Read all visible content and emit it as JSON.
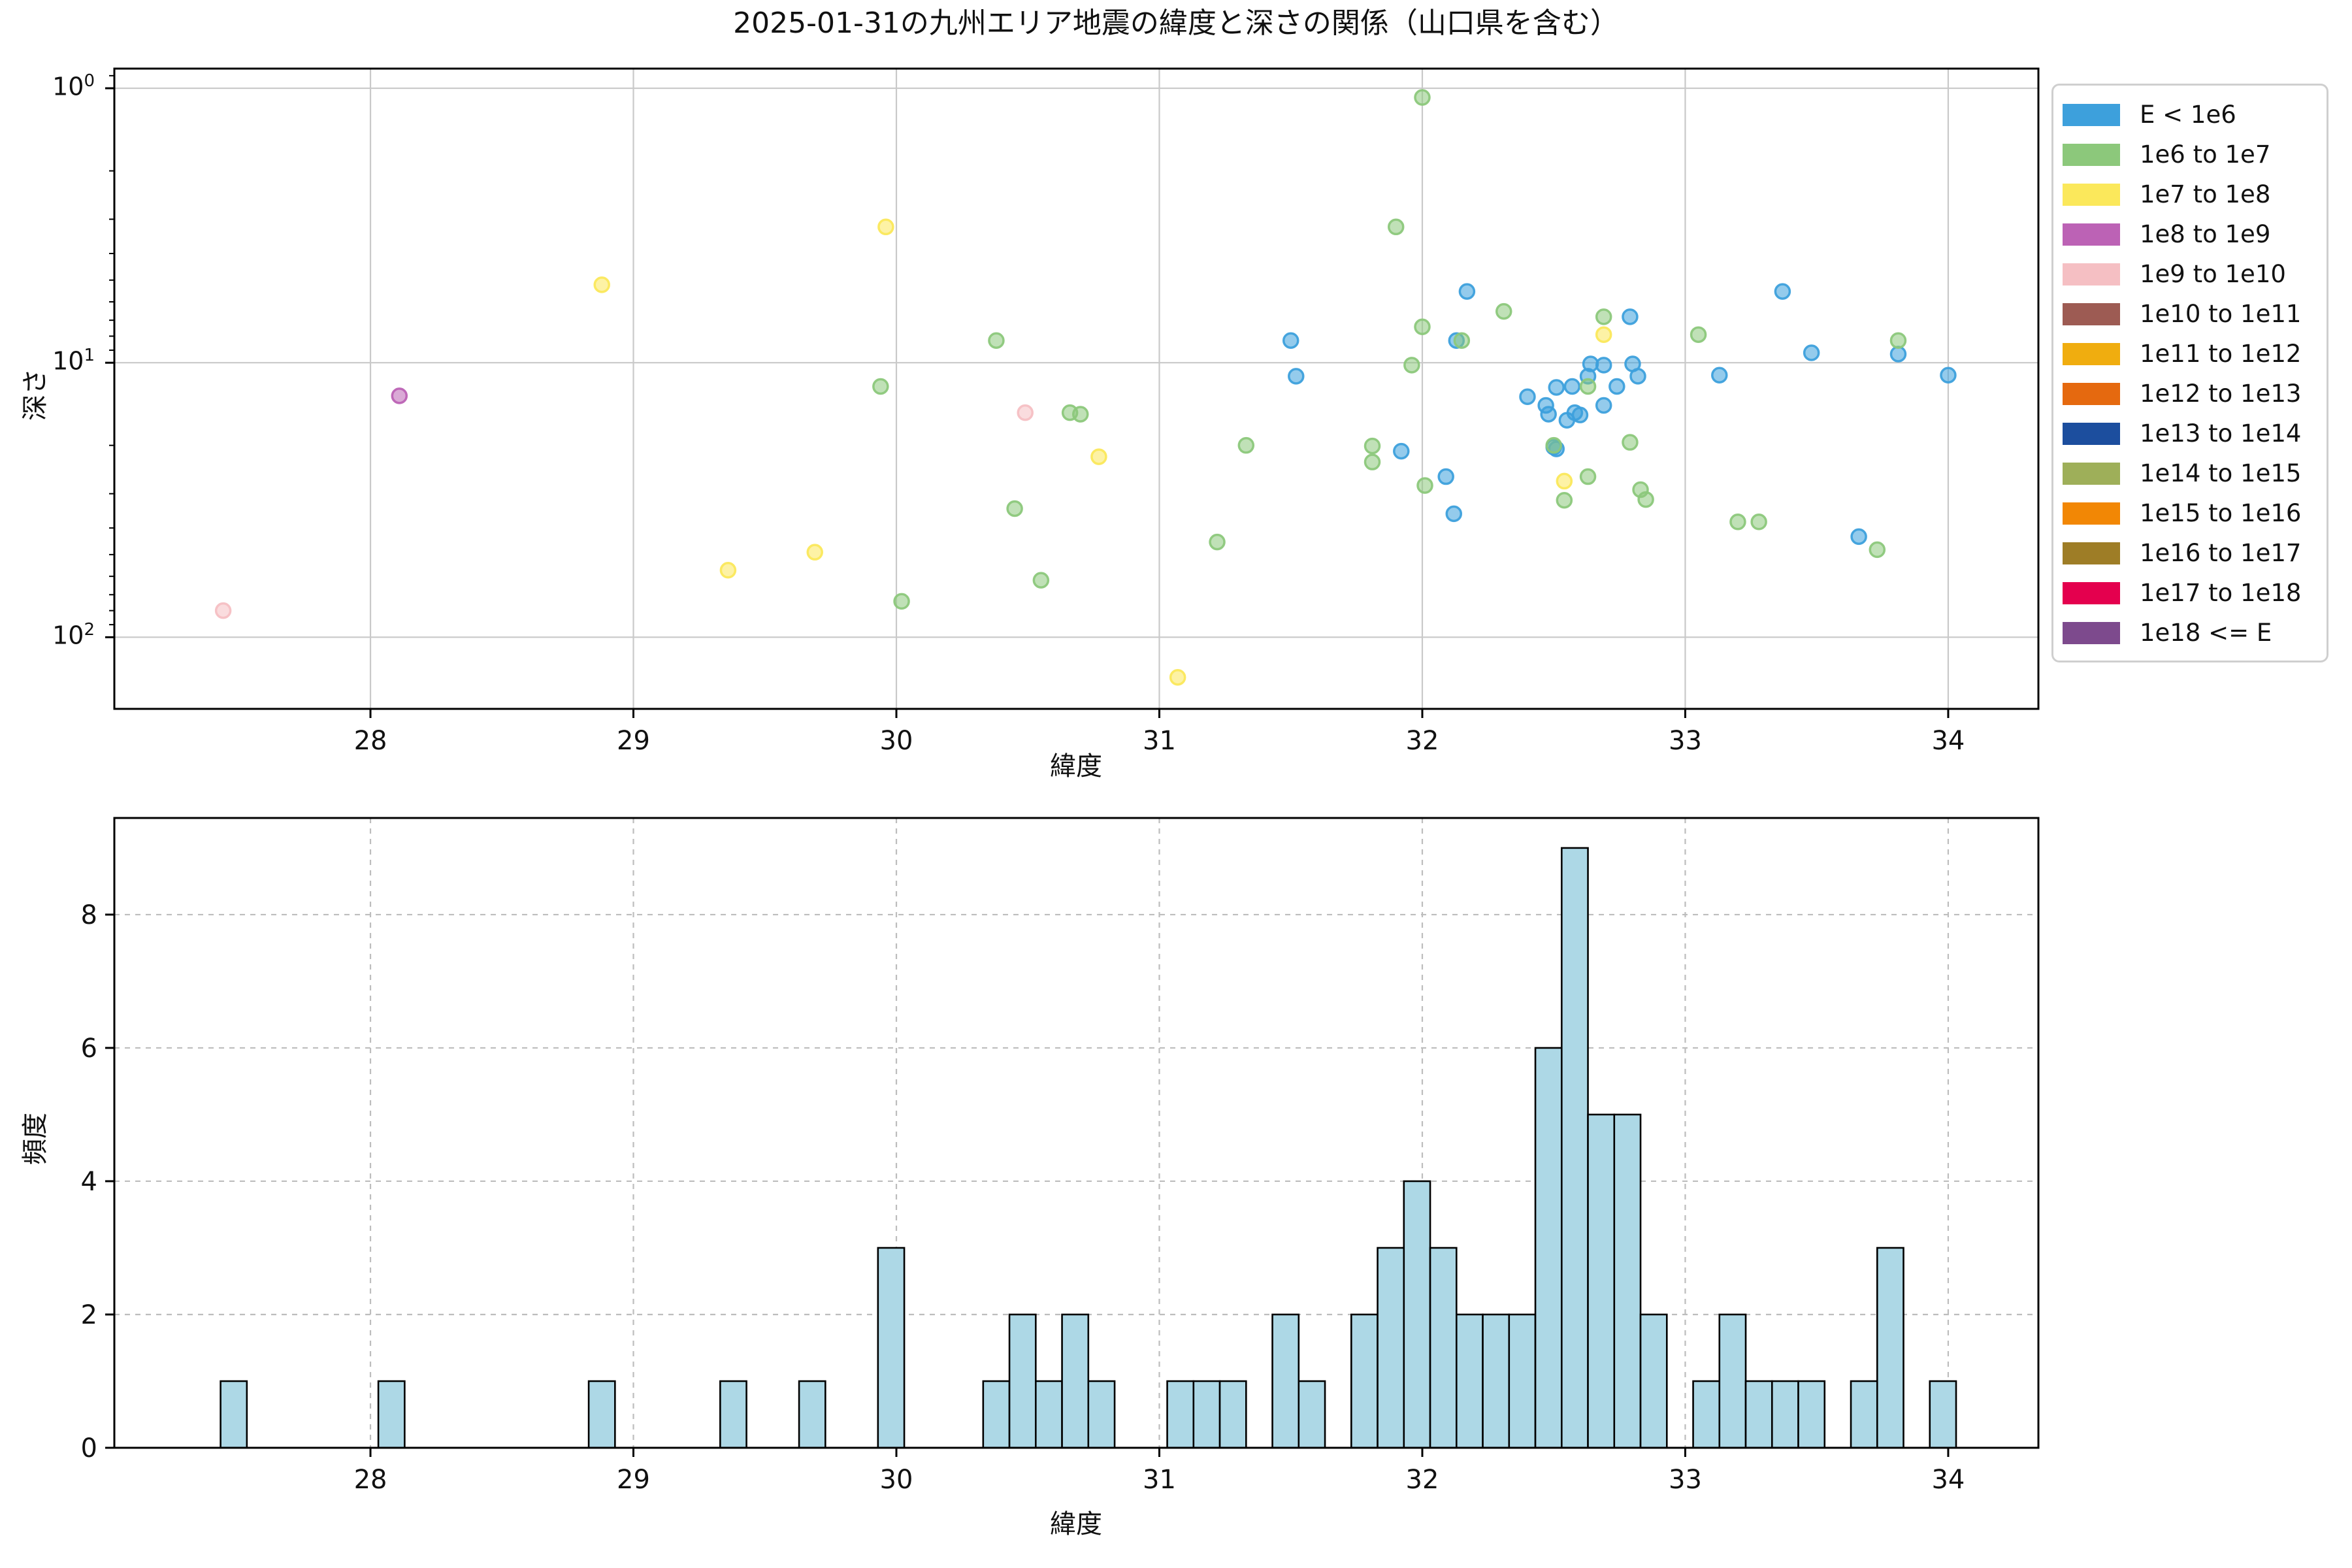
{
  "title": "2025-01-31の九州エリア地震の緯度と深さの関係（山口県を含む）",
  "legend": {
    "entries": [
      {
        "label": "E < 1e6",
        "color": "#3DA0DC"
      },
      {
        "label": "1e6 to 1e7",
        "color": "#8CC87B"
      },
      {
        "label": "1e7 to 1e8",
        "color": "#FBE85B"
      },
      {
        "label": "1e8 to 1e9",
        "color": "#BC62B5"
      },
      {
        "label": "1e9 to 1e10",
        "color": "#F5BFC3"
      },
      {
        "label": "1e10 to 1e11",
        "color": "#9D5B53"
      },
      {
        "label": "1e11 to 1e12",
        "color": "#F0AD0F"
      },
      {
        "label": "1e12 to 1e13",
        "color": "#E5690F"
      },
      {
        "label": "1e13 to 1e14",
        "color": "#1C4E9E"
      },
      {
        "label": "1e14 to 1e15",
        "color": "#9EAF59"
      },
      {
        "label": "1e15 to 1e16",
        "color": "#F28705"
      },
      {
        "label": "1e16 to 1e17",
        "color": "#9E7D26"
      },
      {
        "label": "1e17 to 1e18",
        "color": "#E4004E"
      },
      {
        "label": "1e18 <= E",
        "color": "#7D4A8D"
      }
    ]
  },
  "chart_data": [
    {
      "type": "scatter",
      "title": "2025-01-31の九州エリア地震の緯度と深さの関係（山口県を含む）",
      "xlabel": "緯度",
      "ylabel": "深さ",
      "xlim": [
        27.026,
        34.343
      ],
      "ylim": [
        0.848,
        182.4
      ],
      "y_inverted": true,
      "y_log": true,
      "grid": "solid",
      "x_ticks": [
        28,
        29,
        30,
        31,
        32,
        33,
        34
      ],
      "y_ticks": [
        {
          "value": 1,
          "exp": "0"
        },
        {
          "value": 10,
          "exp": "1"
        },
        {
          "value": 100,
          "exp": "2"
        }
      ],
      "y_minor_ticks": [
        0.9,
        2,
        3,
        4,
        5,
        6,
        7,
        8,
        9,
        20,
        30,
        40,
        50,
        60,
        70,
        80,
        90
      ],
      "legend_position": "outside-right",
      "series": [
        {
          "name": "E < 1e6",
          "color": "#3DA0DC",
          "points": [
            [
              31.5,
              8.3
            ],
            [
              31.52,
              11.2
            ],
            [
              31.92,
              21.0
            ],
            [
              32.09,
              26.0
            ],
            [
              32.13,
              8.3
            ],
            [
              32.12,
              35.5
            ],
            [
              32.17,
              5.5
            ],
            [
              32.4,
              13.3
            ],
            [
              32.47,
              14.3
            ],
            [
              32.48,
              15.4
            ],
            [
              32.5,
              20.3
            ],
            [
              32.51,
              20.6
            ],
            [
              32.51,
              12.3
            ],
            [
              32.55,
              16.2
            ],
            [
              32.57,
              12.2
            ],
            [
              32.58,
              15.2
            ],
            [
              32.6,
              15.5
            ],
            [
              32.63,
              11.2
            ],
            [
              32.64,
              10.1
            ],
            [
              32.69,
              10.2
            ],
            [
              32.69,
              14.3
            ],
            [
              32.74,
              12.2
            ],
            [
              32.79,
              6.8
            ],
            [
              32.8,
              10.1
            ],
            [
              32.82,
              11.2
            ],
            [
              33.13,
              11.1
            ],
            [
              33.37,
              5.5
            ],
            [
              33.48,
              9.2
            ],
            [
              33.66,
              43.0
            ],
            [
              33.81,
              9.3
            ],
            [
              34.0,
              11.1
            ]
          ]
        },
        {
          "name": "1e6 to 1e7",
          "color": "#8CC87B",
          "points": [
            [
              29.94,
              12.2
            ],
            [
              30.02,
              74.0
            ],
            [
              30.38,
              8.3
            ],
            [
              30.45,
              34.0
            ],
            [
              30.55,
              62.0
            ],
            [
              30.66,
              15.2
            ],
            [
              30.7,
              15.4
            ],
            [
              31.22,
              45.0
            ],
            [
              31.33,
              20.0
            ],
            [
              31.81,
              20.1
            ],
            [
              31.81,
              23.0
            ],
            [
              31.9,
              3.2
            ],
            [
              31.96,
              10.2
            ],
            [
              32.0,
              7.4
            ],
            [
              32.0,
              1.08
            ],
            [
              32.01,
              28.0
            ],
            [
              32.15,
              8.3
            ],
            [
              32.31,
              6.5
            ],
            [
              32.5,
              20.0
            ],
            [
              32.54,
              31.7
            ],
            [
              32.63,
              12.2
            ],
            [
              32.63,
              26.0
            ],
            [
              32.69,
              6.8
            ],
            [
              32.79,
              19.5
            ],
            [
              32.83,
              29.0
            ],
            [
              32.85,
              31.5
            ],
            [
              33.05,
              7.9
            ],
            [
              33.2,
              38.0
            ],
            [
              33.28,
              38.0
            ],
            [
              33.73,
              48.0
            ],
            [
              33.81,
              8.3
            ]
          ]
        },
        {
          "name": "1e7 to 1e8",
          "color": "#FBE85B",
          "points": [
            [
              28.88,
              5.2
            ],
            [
              29.36,
              57.0
            ],
            [
              29.69,
              49.0
            ],
            [
              29.96,
              3.2
            ],
            [
              30.77,
              22.0
            ],
            [
              31.07,
              140.0
            ],
            [
              32.54,
              27.0
            ],
            [
              32.69,
              7.9
            ]
          ]
        },
        {
          "name": "1e8 to 1e9",
          "color": "#BC62B5",
          "points": [
            [
              28.11,
              13.2
            ]
          ]
        },
        {
          "name": "1e9 to 1e10",
          "color": "#F5BFC3",
          "points": [
            [
              27.44,
              80.0
            ],
            [
              30.49,
              15.2
            ]
          ]
        }
      ]
    },
    {
      "type": "bar",
      "xlabel": "緯度",
      "ylabel": "頻度",
      "xlim": [
        27.026,
        34.343
      ],
      "ylim": [
        0,
        9.45
      ],
      "grid": "dashed",
      "x_ticks": [
        28,
        29,
        30,
        31,
        32,
        33,
        34
      ],
      "y_ticks": [
        0,
        2,
        4,
        6,
        8
      ],
      "bar_color": "#ADD8E6",
      "bar_edge_color": "#000000",
      "bin_width": 0.1,
      "bars": [
        [
          27.48,
          1
        ],
        [
          28.08,
          1
        ],
        [
          28.88,
          1
        ],
        [
          29.38,
          1
        ],
        [
          29.68,
          1
        ],
        [
          29.98,
          3
        ],
        [
          30.38,
          1
        ],
        [
          30.48,
          2
        ],
        [
          30.58,
          1
        ],
        [
          30.68,
          2
        ],
        [
          30.78,
          1
        ],
        [
          31.08,
          1
        ],
        [
          31.18,
          1
        ],
        [
          31.28,
          1
        ],
        [
          31.48,
          2
        ],
        [
          31.58,
          1
        ],
        [
          31.78,
          2
        ],
        [
          31.88,
          3
        ],
        [
          31.98,
          4
        ],
        [
          32.08,
          3
        ],
        [
          32.18,
          2
        ],
        [
          32.28,
          2
        ],
        [
          32.38,
          2
        ],
        [
          32.48,
          6
        ],
        [
          32.58,
          9
        ],
        [
          32.68,
          5
        ],
        [
          32.78,
          5
        ],
        [
          32.88,
          2
        ],
        [
          33.08,
          1
        ],
        [
          33.18,
          2
        ],
        [
          33.28,
          1
        ],
        [
          33.38,
          1
        ],
        [
          33.48,
          1
        ],
        [
          33.68,
          1
        ],
        [
          33.78,
          3
        ],
        [
          33.98,
          1
        ]
      ]
    }
  ]
}
